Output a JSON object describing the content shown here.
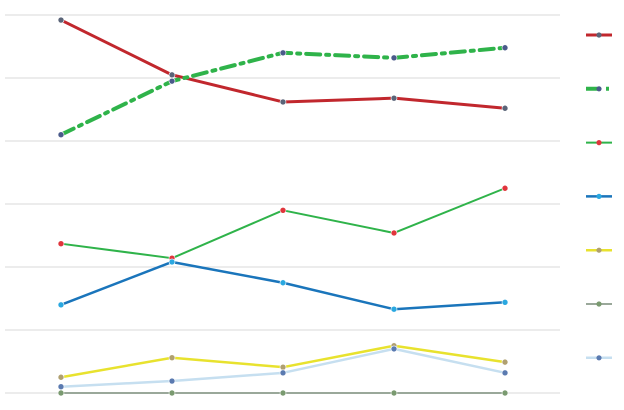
{
  "chart_data": {
    "type": "line",
    "x": [
      null,
      null,
      null,
      null,
      null
    ],
    "ylim": [
      0,
      6
    ],
    "yticks": [
      0,
      1,
      2,
      3,
      4,
      5,
      6
    ],
    "grid": true,
    "legend": "right",
    "series": [
      {
        "color": "#c1272d",
        "linestyle": "solid",
        "linewidth": 3,
        "marker_color": "#5a6478",
        "values": [
          5.92,
          5.05,
          4.62,
          4.68,
          4.52
        ]
      },
      {
        "color": "#2fb34a",
        "linestyle": "dashdot",
        "linewidth": 4,
        "marker_color": "#4a5a8a",
        "values": [
          4.1,
          4.95,
          5.4,
          5.32,
          5.48
        ]
      },
      {
        "color": "#2fb34a",
        "linestyle": "solid",
        "linewidth": 2,
        "marker_color": "#e0353c",
        "values": [
          2.37,
          2.14,
          2.9,
          2.54,
          3.25
        ]
      },
      {
        "color": "#1a75bb",
        "linestyle": "solid",
        "linewidth": 2.5,
        "marker_color": "#2aa8e0",
        "values": [
          1.4,
          2.08,
          1.75,
          1.33,
          1.44
        ]
      },
      {
        "color": "#e8e22e",
        "linestyle": "solid",
        "linewidth": 2.5,
        "marker_color": "#b0a070",
        "values": [
          0.25,
          0.56,
          0.41,
          0.75,
          0.49
        ]
      },
      {
        "color": "#9aa89a",
        "linestyle": "solid",
        "linewidth": 2,
        "marker_color": "#7a9a70",
        "values": [
          0,
          0,
          0,
          0,
          0
        ]
      },
      {
        "color": "#c6dff0",
        "linestyle": "solid",
        "linewidth": 2.5,
        "marker_color": "#5a7ab0",
        "values": [
          0.1,
          0.19,
          0.32,
          0.7,
          0.32
        ]
      }
    ]
  }
}
